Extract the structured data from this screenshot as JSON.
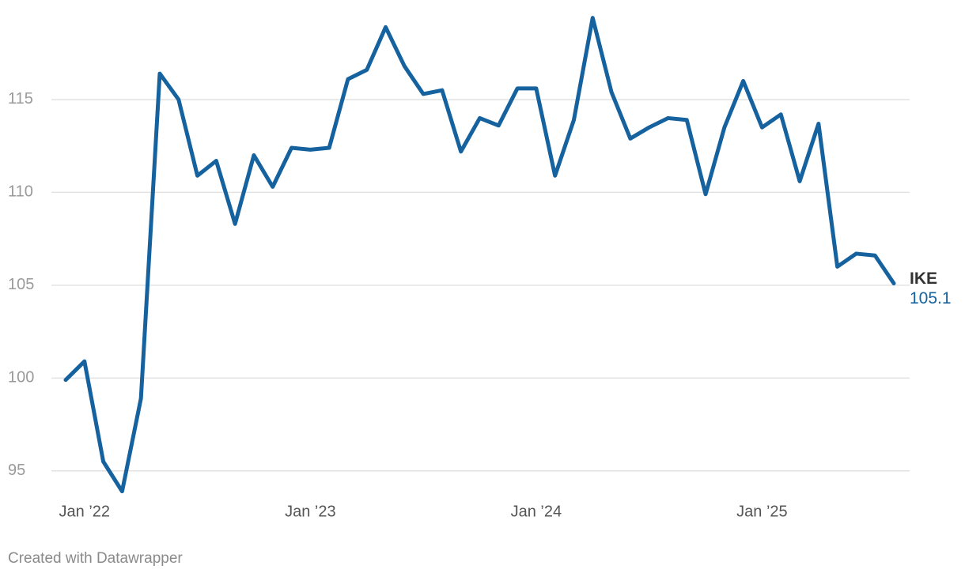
{
  "chart_data": {
    "type": "line",
    "footer": "Created with Datawrapper",
    "x": [
      "2021-12",
      "2022-01",
      "2022-02",
      "2022-03",
      "2022-04",
      "2022-05",
      "2022-06",
      "2022-07",
      "2022-08",
      "2022-09",
      "2022-10",
      "2022-11",
      "2022-12",
      "2023-01",
      "2023-02",
      "2023-03",
      "2023-04",
      "2023-05",
      "2023-06",
      "2023-07",
      "2023-08",
      "2023-09",
      "2023-10",
      "2023-11",
      "2023-12",
      "2024-01",
      "2024-02",
      "2024-03",
      "2024-04",
      "2024-05",
      "2024-06",
      "2024-07",
      "2024-08",
      "2024-09",
      "2024-10",
      "2024-11",
      "2024-12",
      "2025-01",
      "2025-02",
      "2025-03",
      "2025-04",
      "2025-05",
      "2025-06",
      "2025-07",
      "2025-08"
    ],
    "series": [
      {
        "name": "IKE",
        "color": "#15629e",
        "values": [
          99.9,
          100.9,
          95.5,
          93.9,
          98.9,
          116.4,
          115.0,
          110.9,
          111.7,
          108.3,
          112.0,
          110.3,
          112.4,
          112.3,
          112.4,
          116.1,
          116.6,
          118.9,
          116.8,
          115.3,
          115.5,
          112.2,
          114.0,
          113.6,
          115.6,
          115.6,
          110.9,
          113.9,
          119.4,
          115.4,
          112.9,
          113.5,
          114.0,
          113.9,
          109.9,
          113.5,
          116.0,
          113.5,
          114.2,
          110.6,
          113.7,
          106.0,
          106.7,
          106.6,
          105.1
        ]
      }
    ],
    "xlim": [
      "2021-12",
      "2025-08"
    ],
    "xticks": [
      {
        "value": "2022-01",
        "label": "Jan ’22"
      },
      {
        "value": "2023-01",
        "label": "Jan ’23"
      },
      {
        "value": "2024-01",
        "label": "Jan ’24"
      },
      {
        "value": "2025-01",
        "label": "Jan ’25"
      }
    ],
    "ylim": [
      93.5,
      119.5
    ],
    "yticks": [
      95,
      100,
      105,
      110,
      115
    ],
    "grid": true
  }
}
